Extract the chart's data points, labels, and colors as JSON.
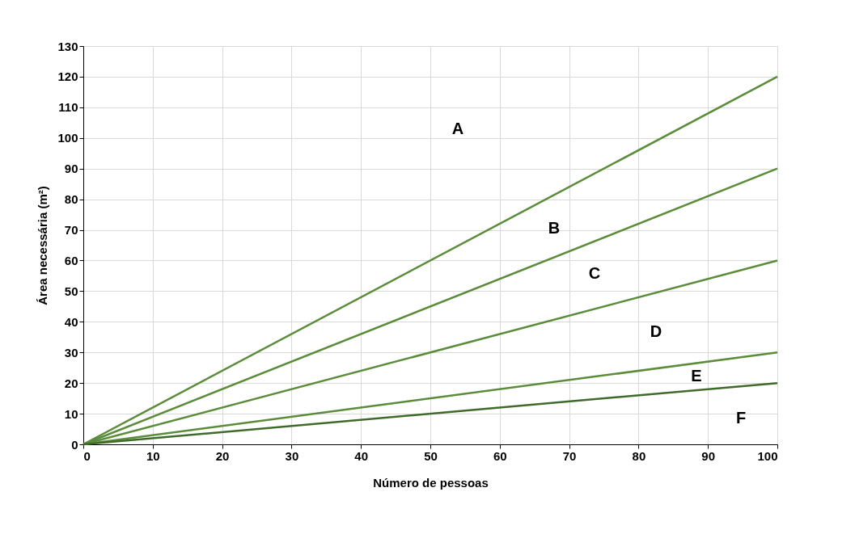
{
  "chart_data": {
    "type": "line",
    "xlabel": "Número de pessoas",
    "ylabel": "Área necessária (m²)",
    "x": [
      0,
      100
    ],
    "series": [
      {
        "color": "#5b8c3a",
        "values": [
          0,
          120
        ]
      },
      {
        "color": "#5b8c3a",
        "values": [
          0,
          90
        ]
      },
      {
        "color": "#5b8c3a",
        "values": [
          0,
          60
        ]
      },
      {
        "color": "#5b8c3a",
        "values": [
          0,
          30
        ]
      },
      {
        "color": "#3f6b2a",
        "values": [
          0,
          20
        ]
      }
    ],
    "xlim": [
      0,
      100
    ],
    "xticks": [
      0,
      10,
      20,
      30,
      40,
      50,
      60,
      70,
      80,
      90,
      100
    ],
    "ylim": [
      0,
      130
    ],
    "yticks": [
      0,
      10,
      20,
      30,
      40,
      50,
      60,
      70,
      80,
      90,
      100,
      110,
      120,
      130
    ],
    "grid": true,
    "marker": "none",
    "line_style": "solid",
    "annotations": [
      "A",
      "B",
      "C",
      "D",
      "E",
      "F"
    ]
  }
}
